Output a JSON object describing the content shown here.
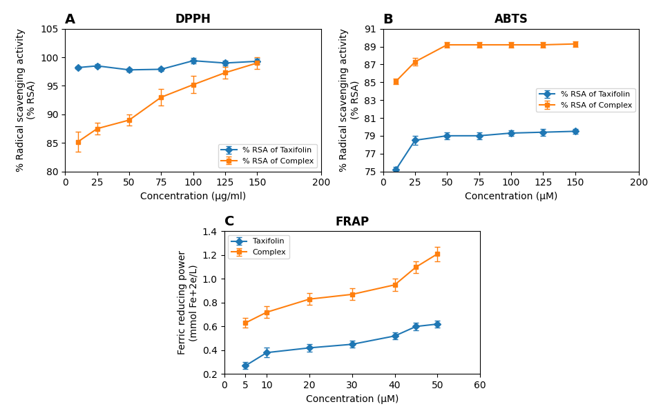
{
  "chart_data": [
    {
      "type": "line",
      "title": "DPPH",
      "x_label": "Concentration (μg/ml)",
      "y_label": "% Radical scavenging activity\n(% RSA)",
      "annotations": [
        "A"
      ],
      "xlim": [
        0,
        200
      ],
      "ylim": [
        80,
        105
      ],
      "xticks": [
        0,
        25,
        50,
        75,
        100,
        125,
        150,
        200
      ],
      "yticks": [
        80,
        85,
        90,
        95,
        100,
        105
      ],
      "x": [
        10,
        25,
        50,
        75,
        100,
        125,
        150
      ],
      "legend": "lower right",
      "series": [
        {
          "name": "% RSA of Taxifolin",
          "marker": "diamond",
          "values": [
            98.2,
            98.5,
            97.8,
            97.9,
            99.4,
            99.0,
            99.3
          ],
          "errors": [
            0.3,
            0.3,
            0.3,
            0.3,
            0.5,
            0.4,
            0.5
          ]
        },
        {
          "name": "% RSA of Complex",
          "marker": "square",
          "values": [
            85.2,
            87.5,
            89.0,
            93.0,
            95.2,
            97.3,
            99.0
          ],
          "errors": [
            1.8,
            1.0,
            1.0,
            1.5,
            1.5,
            1.0,
            1.0
          ]
        }
      ]
    },
    {
      "type": "line",
      "title": "ABTS",
      "x_label": "Concentration (μM)",
      "y_label": "% Radical scavenging activity\n(% RSA)",
      "annotations": [
        "B"
      ],
      "xlim": [
        0,
        200
      ],
      "ylim": [
        75,
        91
      ],
      "xticks": [
        0,
        25,
        50,
        75,
        100,
        125,
        150,
        200
      ],
      "yticks": [
        75,
        77,
        79,
        81,
        83,
        85,
        87,
        89,
        91
      ],
      "x": [
        10,
        25,
        50,
        75,
        100,
        125,
        150
      ],
      "legend": "center right",
      "series": [
        {
          "name": "% RSA of Taxifolin",
          "marker": "diamond",
          "values": [
            75.2,
            78.5,
            79.0,
            79.0,
            79.3,
            79.4,
            79.5
          ],
          "errors": [
            0.3,
            0.5,
            0.4,
            0.4,
            0.3,
            0.4,
            0.3
          ]
        },
        {
          "name": "% RSA of Complex",
          "marker": "square",
          "values": [
            85.1,
            87.3,
            89.2,
            89.2,
            89.2,
            89.2,
            89.3
          ],
          "errors": [
            0.3,
            0.4,
            0.3,
            0.3,
            0.3,
            0.3,
            0.3
          ]
        }
      ]
    },
    {
      "type": "line",
      "title": "FRAP",
      "x_label": "Concentration (μM)",
      "y_label": "Ferric reducing power\n(mmol Fe+2e/L)",
      "annotations": [
        "C"
      ],
      "xlim": [
        0,
        60
      ],
      "ylim": [
        0.2,
        1.4
      ],
      "xticks": [
        0,
        5,
        10,
        20,
        30,
        40,
        50,
        60
      ],
      "yticks": [
        0.2,
        0.4,
        0.6,
        0.8,
        1.0,
        1.2,
        1.4
      ],
      "x": [
        5,
        10,
        20,
        30,
        40,
        45,
        50
      ],
      "legend": "upper left",
      "series": [
        {
          "name": "Taxifolin",
          "marker": "diamond",
          "values": [
            0.27,
            0.38,
            0.42,
            0.45,
            0.52,
            0.6,
            0.62
          ],
          "errors": [
            0.03,
            0.04,
            0.03,
            0.03,
            0.03,
            0.03,
            0.03
          ]
        },
        {
          "name": "Complex",
          "marker": "square",
          "values": [
            0.63,
            0.72,
            0.83,
            0.87,
            0.95,
            1.1,
            1.21
          ],
          "errors": [
            0.04,
            0.05,
            0.05,
            0.05,
            0.05,
            0.05,
            0.06
          ]
        }
      ]
    }
  ]
}
